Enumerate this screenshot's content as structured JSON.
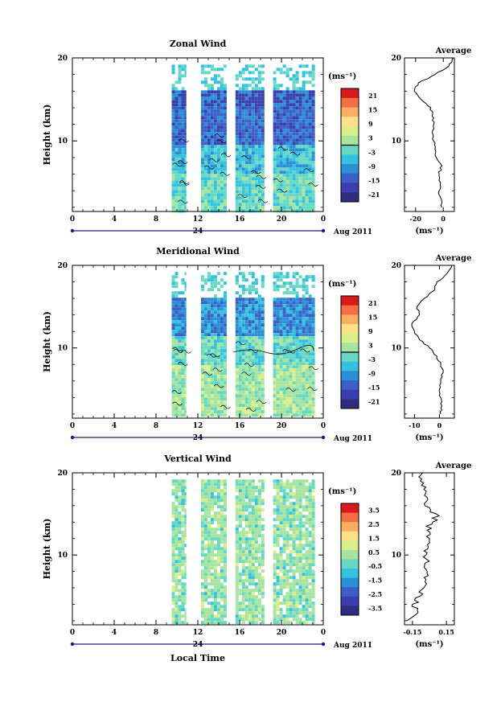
{
  "panels": [
    {
      "key": "zonal",
      "title": "Zonal Wind",
      "ylabel": "Height (km)",
      "unit": "(ms⁻¹)",
      "avg_title": "Average",
      "avg_unit": "(ms⁻¹)",
      "xticks": [
        "0",
        "4",
        "8",
        "12",
        "16",
        "20",
        "0"
      ],
      "yticks": [
        "20",
        "10"
      ],
      "date_day": "24",
      "date_month": "Aug 2011",
      "cb_labels": [
        "21",
        "15",
        "9",
        "3",
        "-3",
        "-9",
        "-15",
        "-21"
      ],
      "avg_xticks": [
        "-20",
        "0"
      ]
    },
    {
      "key": "meridional",
      "title": "Meridional Wind",
      "ylabel": "Height (km)",
      "unit": "(ms⁻¹)",
      "avg_title": "Average",
      "avg_unit": "(ms⁻¹)",
      "xticks": [
        "0",
        "4",
        "8",
        "12",
        "16",
        "20",
        "0"
      ],
      "yticks": [
        "20",
        "10"
      ],
      "date_day": "24",
      "date_month": "Aug 2011",
      "cb_labels": [
        "21",
        "15",
        "9",
        "3",
        "-3",
        "-9",
        "-15",
        "-21"
      ],
      "avg_xticks": [
        "-10",
        "0"
      ]
    },
    {
      "key": "vertical",
      "title": "Vertical Wind",
      "ylabel": "Height (km)",
      "unit": "(ms⁻¹)",
      "avg_title": "Average",
      "avg_unit": "(ms⁻¹)",
      "xticks": [
        "0",
        "4",
        "8",
        "12",
        "16",
        "20",
        "0"
      ],
      "yticks": [
        "20",
        "10"
      ],
      "date_day": "24",
      "date_month": "Aug 2011",
      "cb_labels": [
        "3.5",
        "2.5",
        "1.5",
        "0.5",
        "-0.5",
        "-1.5",
        "-2.5",
        "-3.5"
      ],
      "avg_xticks": [
        "-0.15",
        "0.15"
      ]
    }
  ],
  "xlabel": "Local Time",
  "chart_data": [
    {
      "type": "heatmap",
      "title": "Zonal Wind",
      "ylabel": "Height (km)",
      "xlabel": "Local Time",
      "x_range_hours": [
        0,
        24
      ],
      "y_range_km": [
        1.5,
        20
      ],
      "date": "24 Aug 2011",
      "colorbar_unit": "ms-1",
      "colorbar_range": [
        -24,
        24
      ],
      "colorbar_ticks": [
        21,
        15,
        9,
        3,
        -3,
        -9,
        -15,
        -21
      ],
      "data_columns_hours": [
        [
          9.5,
          10.9
        ],
        [
          12.3,
          14.8
        ],
        [
          15.6,
          18.4
        ],
        [
          19.2,
          23.2
        ]
      ],
      "profile": {
        "heights_km": [
          2,
          3,
          4,
          5,
          6,
          7,
          8,
          9,
          10,
          11,
          12,
          13,
          14,
          15,
          16,
          17,
          18,
          19,
          20
        ],
        "values": [
          -1,
          -1.5,
          -3,
          -2,
          -3,
          -1,
          -5,
          -6,
          -7,
          -8,
          -7,
          -8,
          -9,
          -16,
          -21,
          -18,
          -6,
          4,
          7
        ]
      },
      "profile_xlim": [
        -28,
        8
      ],
      "profile_xticks": [
        -20,
        0
      ]
    },
    {
      "type": "heatmap",
      "title": "Meridional Wind",
      "ylabel": "Height (km)",
      "xlabel": "Local Time",
      "x_range_hours": [
        0,
        24
      ],
      "y_range_km": [
        1.5,
        20
      ],
      "date": "24 Aug 2011",
      "colorbar_unit": "ms-1",
      "colorbar_range": [
        -24,
        24
      ],
      "colorbar_ticks": [
        21,
        15,
        9,
        3,
        -3,
        -9,
        -15,
        -21
      ],
      "data_columns_hours": [
        [
          9.5,
          10.9
        ],
        [
          12.3,
          14.8
        ],
        [
          15.6,
          18.4
        ],
        [
          19.2,
          23.2
        ]
      ],
      "profile": {
        "heights_km": [
          2,
          3,
          4,
          5,
          6,
          7,
          8,
          9,
          10,
          11,
          12,
          13,
          14,
          15,
          16,
          17,
          18,
          19,
          20
        ],
        "values": [
          0.5,
          1,
          0.5,
          0,
          0.5,
          1.5,
          0.5,
          -1,
          -4,
          -8,
          -10,
          -11,
          -8,
          -9,
          -6,
          -2,
          -1,
          3,
          5
        ]
      },
      "profile_xlim": [
        -14,
        6
      ],
      "profile_xticks": [
        -10,
        0
      ]
    },
    {
      "type": "heatmap",
      "title": "Vertical Wind",
      "ylabel": "Height (km)",
      "xlabel": "Local Time",
      "x_range_hours": [
        0,
        24
      ],
      "y_range_km": [
        1.5,
        20
      ],
      "date": "24 Aug 2011",
      "colorbar_unit": "ms-1",
      "colorbar_range": [
        -4,
        4
      ],
      "colorbar_ticks": [
        3.5,
        2.5,
        1.5,
        0.5,
        -0.5,
        -1.5,
        -2.5,
        -3.5
      ],
      "data_columns_hours": [
        [
          9.5,
          10.9
        ],
        [
          12.3,
          14.8
        ],
        [
          15.6,
          18.4
        ],
        [
          19.2,
          23.2
        ]
      ],
      "profile": {
        "heights_km": [
          2,
          3,
          4,
          5,
          6,
          7,
          8,
          9,
          10,
          11,
          12,
          13,
          14,
          15,
          16,
          17,
          18,
          19,
          20
        ],
        "values": [
          -0.2,
          -0.1,
          -0.15,
          -0.08,
          -0.05,
          -0.03,
          -0.02,
          -0.04,
          -0.03,
          -0.01,
          0.0,
          -0.02,
          0.03,
          0.06,
          -0.04,
          -0.02,
          -0.05,
          -0.08,
          -0.06
        ]
      },
      "profile_xlim": [
        -0.22,
        0.22
      ],
      "profile_xticks": [
        -0.15,
        0.15
      ]
    }
  ]
}
